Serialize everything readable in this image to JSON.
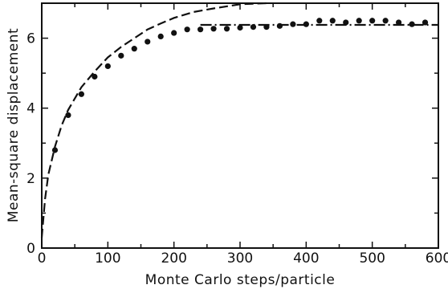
{
  "chart_data": {
    "type": "scatter",
    "xlabel": "Monte Carlo steps/particle",
    "ylabel": "Mean-square displacement",
    "xlim": [
      0,
      600
    ],
    "ylim": [
      0,
      7
    ],
    "x_ticks": [
      0,
      100,
      200,
      300,
      400,
      500,
      600
    ],
    "y_ticks": [
      0,
      2,
      4,
      6
    ],
    "grid": false,
    "series": [
      {
        "style": "points",
        "x": [
          20,
          40,
          60,
          80,
          100,
          120,
          140,
          160,
          180,
          200,
          220,
          240,
          260,
          280,
          300,
          320,
          340,
          360,
          380,
          400,
          420,
          440,
          460,
          480,
          500,
          520,
          540,
          560,
          580
        ],
        "y": [
          2.8,
          3.8,
          4.4,
          4.9,
          5.2,
          5.5,
          5.7,
          5.9,
          6.05,
          6.15,
          6.25,
          6.25,
          6.27,
          6.27,
          6.3,
          6.32,
          6.32,
          6.35,
          6.4,
          6.4,
          6.5,
          6.5,
          6.45,
          6.5,
          6.5,
          6.5,
          6.45,
          6.4,
          6.45
        ]
      },
      {
        "style": "dashed",
        "x": [
          0,
          5,
          10,
          20,
          30,
          40,
          60,
          80,
          100,
          120,
          140,
          160,
          180,
          200,
          230,
          260,
          300,
          340
        ],
        "y": [
          0.3,
          1.4,
          2.1,
          2.9,
          3.5,
          3.95,
          4.6,
          5.05,
          5.45,
          5.75,
          6.0,
          6.25,
          6.42,
          6.58,
          6.75,
          6.85,
          6.97,
          7.0
        ]
      },
      {
        "style": "dash-dot",
        "x": [
          240,
          600
        ],
        "y": [
          6.38,
          6.38
        ]
      }
    ]
  }
}
